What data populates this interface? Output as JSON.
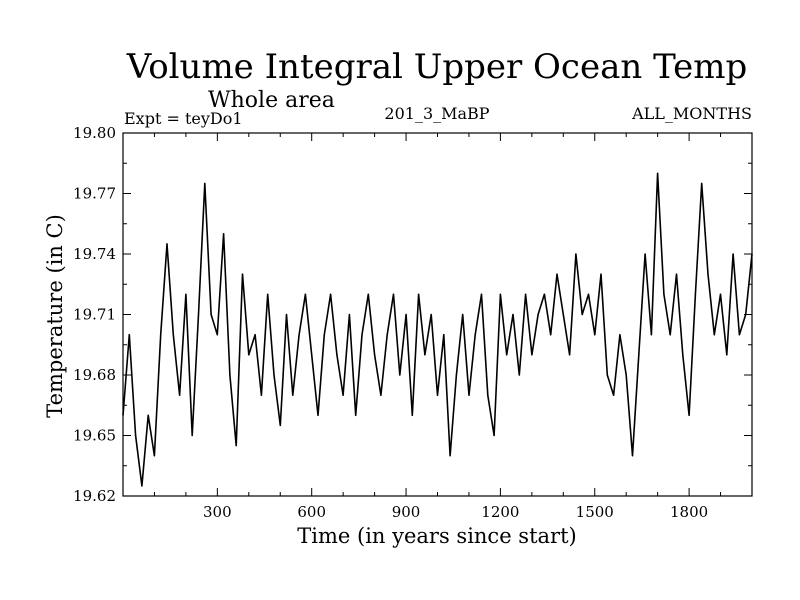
{
  "chart_data": {
    "type": "line",
    "title": "Volume Integral Upper Ocean Temp",
    "subtitle": "Whole area",
    "annotations": {
      "left": "Expt = teyDo1",
      "center": "201_3_MaBP",
      "right": "ALL_MONTHS"
    },
    "xlabel": "Time (in years since start)",
    "ylabel": "Temperature (in C)",
    "xlim": [
      0,
      2000
    ],
    "ylim": [
      19.62,
      19.8
    ],
    "xticks": [
      300,
      600,
      900,
      1200,
      1500,
      1800
    ],
    "xtick_labels": [
      "300",
      "600",
      "900",
      "1200",
      "1500",
      "1800"
    ],
    "yticks": [
      19.62,
      19.65,
      19.68,
      19.71,
      19.74,
      19.77,
      19.8
    ],
    "ytick_labels": [
      "19.62",
      "19.65",
      "19.68",
      "19.71",
      "19.74",
      "19.77",
      "19.80"
    ],
    "grid": false,
    "series": [
      {
        "name": "Temperature",
        "color": "#000000",
        "x": [
          0,
          20,
          40,
          60,
          80,
          100,
          120,
          140,
          160,
          180,
          200,
          220,
          240,
          260,
          280,
          300,
          320,
          340,
          360,
          380,
          400,
          420,
          440,
          460,
          480,
          500,
          520,
          540,
          560,
          580,
          600,
          620,
          640,
          660,
          680,
          700,
          720,
          740,
          760,
          780,
          800,
          820,
          840,
          860,
          880,
          900,
          920,
          940,
          960,
          980,
          1000,
          1020,
          1040,
          1060,
          1080,
          1100,
          1120,
          1140,
          1160,
          1180,
          1200,
          1220,
          1240,
          1260,
          1280,
          1300,
          1320,
          1340,
          1360,
          1380,
          1400,
          1420,
          1440,
          1460,
          1480,
          1500,
          1520,
          1540,
          1560,
          1580,
          1600,
          1620,
          1640,
          1660,
          1680,
          1700,
          1720,
          1740,
          1760,
          1780,
          1800,
          1820,
          1840,
          1860,
          1880,
          1900,
          1920,
          1940,
          1960,
          1980,
          2000
        ],
        "values": [
          19.66,
          19.7,
          19.65,
          19.625,
          19.66,
          19.64,
          19.7,
          19.745,
          19.7,
          19.67,
          19.72,
          19.65,
          19.71,
          19.775,
          19.71,
          19.7,
          19.75,
          19.68,
          19.645,
          19.73,
          19.69,
          19.7,
          19.67,
          19.72,
          19.68,
          19.655,
          19.71,
          19.67,
          19.7,
          19.72,
          19.69,
          19.66,
          19.7,
          19.72,
          19.69,
          19.67,
          19.71,
          19.66,
          19.7,
          19.72,
          19.69,
          19.67,
          19.7,
          19.72,
          19.68,
          19.71,
          19.66,
          19.72,
          19.69,
          19.71,
          19.67,
          19.7,
          19.64,
          19.68,
          19.71,
          19.67,
          19.7,
          19.72,
          19.67,
          19.65,
          19.72,
          19.69,
          19.71,
          19.68,
          19.72,
          19.69,
          19.71,
          19.72,
          19.7,
          19.73,
          19.71,
          19.69,
          19.74,
          19.71,
          19.72,
          19.7,
          19.73,
          19.68,
          19.67,
          19.7,
          19.68,
          19.64,
          19.69,
          19.74,
          19.7,
          19.78,
          19.72,
          19.7,
          19.73,
          19.69,
          19.66,
          19.72,
          19.775,
          19.73,
          19.7,
          19.72,
          19.69,
          19.74,
          19.7,
          19.71,
          19.74
        ]
      }
    ]
  }
}
